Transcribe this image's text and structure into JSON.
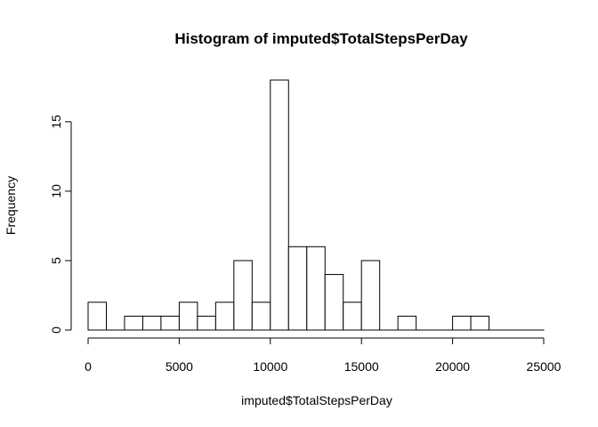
{
  "chart_data": {
    "type": "bar",
    "title": "Histogram of imputed$TotalStepsPerDay",
    "xlabel": "imputed$TotalStepsPerDay",
    "ylabel": "Frequency",
    "bin_width": 1000,
    "bin_start": 0,
    "values": [
      2,
      0,
      1,
      1,
      1,
      2,
      1,
      2,
      5,
      2,
      18,
      6,
      6,
      4,
      2,
      5,
      0,
      1,
      0,
      0,
      1,
      1,
      0,
      0,
      0
    ],
    "x_ticks": [
      0,
      5000,
      10000,
      15000,
      20000,
      25000
    ],
    "y_ticks": [
      0,
      5,
      10,
      15
    ],
    "xlim": [
      0,
      25000
    ],
    "ylim": [
      0,
      18
    ],
    "grid": false,
    "colors": {
      "bar_fill": "#ffffff",
      "bar_stroke": "#000000"
    }
  }
}
